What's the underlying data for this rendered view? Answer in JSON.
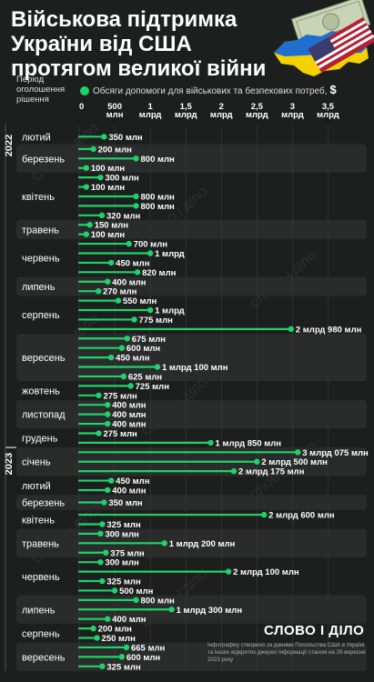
{
  "title_lines": [
    "Військова підтримка",
    "України від США",
    "протягом великої війни"
  ],
  "legend_label": "Обсяги допомоги для військових та безпекових потреб,",
  "currency": "$",
  "period_header": [
    "Період",
    "оголошення",
    "рішення"
  ],
  "footer": "Інфографіку створено за даними Посольства США в Україні та інших відкритих джерел інформації станом на 26 вересня 2023 року",
  "logo": "СЛОВО І ДІЛО",
  "colors": {
    "accent": "#1fd26a",
    "background": "#1d1f1e",
    "band": "#2a2c2b"
  },
  "chart_data": {
    "type": "bar",
    "unit": "USD",
    "xlim": [
      0,
      3750000000
    ],
    "x_ticks": [
      {
        "value": 0,
        "label": [
          "0"
        ]
      },
      {
        "value": 500000000,
        "label": [
          "500",
          "млн"
        ]
      },
      {
        "value": 1000000000,
        "label": [
          "1",
          "млрд"
        ]
      },
      {
        "value": 1500000000,
        "label": [
          "1,5",
          "млрд"
        ]
      },
      {
        "value": 2000000000,
        "label": [
          "2",
          "млрд"
        ]
      },
      {
        "value": 2500000000,
        "label": [
          "2,5",
          "млрд"
        ]
      },
      {
        "value": 3000000000,
        "label": [
          "3",
          "млрд"
        ]
      },
      {
        "value": 3500000000,
        "label": [
          "3,5",
          "млрд"
        ]
      }
    ],
    "years": [
      {
        "label": "2022",
        "from_month": 0
      },
      {
        "label": "2023",
        "from_month": 11
      }
    ],
    "months": [
      {
        "label": "лютий",
        "items": [
          {
            "value": 350000000,
            "label": "350 млн"
          }
        ]
      },
      {
        "label": "березень",
        "items": [
          {
            "value": 200000000,
            "label": "200 млн"
          },
          {
            "value": 800000000,
            "label": "800 млн"
          },
          {
            "value": 100000000,
            "label": "100 млн"
          }
        ]
      },
      {
        "label": "квітень",
        "items": [
          {
            "value": 300000000,
            "label": "300 млн"
          },
          {
            "value": 100000000,
            "label": "100 млн"
          },
          {
            "value": 800000000,
            "label": "800 млн"
          },
          {
            "value": 800000000,
            "label": "800 млн"
          },
          {
            "value": 320000000,
            "label": "320 млн"
          }
        ]
      },
      {
        "label": "травень",
        "items": [
          {
            "value": 150000000,
            "label": "150 млн"
          },
          {
            "value": 100000000,
            "label": "100 млн"
          }
        ]
      },
      {
        "label": "червень",
        "items": [
          {
            "value": 700000000,
            "label": "700 млн"
          },
          {
            "value": 1000000000,
            "label": "1 млрд"
          },
          {
            "value": 450000000,
            "label": "450 млн"
          },
          {
            "value": 820000000,
            "label": "820 млн"
          }
        ]
      },
      {
        "label": "липень",
        "items": [
          {
            "value": 400000000,
            "label": "400 млн"
          },
          {
            "value": 270000000,
            "label": "270 млн"
          }
        ]
      },
      {
        "label": "серпень",
        "items": [
          {
            "value": 550000000,
            "label": "550 млн"
          },
          {
            "value": 1000000000,
            "label": "1 млрд"
          },
          {
            "value": 775000000,
            "label": "775 млн"
          },
          {
            "value": 2980000000,
            "label": "2 млрд 980 млн"
          }
        ]
      },
      {
        "label": "вересень",
        "items": [
          {
            "value": 675000000,
            "label": "675 млн"
          },
          {
            "value": 600000000,
            "label": "600 млн"
          },
          {
            "value": 450000000,
            "label": "450 млн"
          },
          {
            "value": 1100000000,
            "label": "1 млрд 100 млн"
          },
          {
            "value": 625000000,
            "label": "625 млн"
          }
        ]
      },
      {
        "label": "жовтень",
        "items": [
          {
            "value": 725000000,
            "label": "725 млн"
          },
          {
            "value": 275000000,
            "label": "275 млн"
          }
        ]
      },
      {
        "label": "листопад",
        "items": [
          {
            "value": 400000000,
            "label": "400 млн"
          },
          {
            "value": 400000000,
            "label": "400 млн"
          },
          {
            "value": 400000000,
            "label": "400 млн"
          }
        ]
      },
      {
        "label": "грудень",
        "items": [
          {
            "value": 275000000,
            "label": "275 млн"
          },
          {
            "value": 1850000000,
            "label": "1 млрд 850 млн"
          }
        ]
      },
      {
        "label": "січень",
        "items": [
          {
            "value": 3075000000,
            "label": "3 млрд 075 млн"
          },
          {
            "value": 2500000000,
            "label": "2 млрд 500 млн"
          },
          {
            "value": 2175000000,
            "label": "2 млрд 175 млн"
          }
        ]
      },
      {
        "label": "лютий",
        "items": [
          {
            "value": 450000000,
            "label": "450 млн"
          },
          {
            "value": 400000000,
            "label": "400 млн"
          }
        ]
      },
      {
        "label": "березень",
        "items": [
          {
            "value": 350000000,
            "label": "350 млн"
          }
        ]
      },
      {
        "label": "квітень",
        "items": [
          {
            "value": 2600000000,
            "label": "2 млрд 600 млн"
          },
          {
            "value": 325000000,
            "label": "325 млн"
          }
        ]
      },
      {
        "label": "травень",
        "items": [
          {
            "value": 300000000,
            "label": "300 млн"
          },
          {
            "value": 1200000000,
            "label": "1 млрд 200 млн"
          },
          {
            "value": 375000000,
            "label": "375 млн"
          }
        ]
      },
      {
        "label": "червень",
        "items": [
          {
            "value": 300000000,
            "label": "300 млн"
          },
          {
            "value": 2100000000,
            "label": "2 млрд 100 млн"
          },
          {
            "value": 325000000,
            "label": "325 млн"
          },
          {
            "value": 500000000,
            "label": "500 млн"
          }
        ]
      },
      {
        "label": "липень",
        "items": [
          {
            "value": 800000000,
            "label": "800 млн"
          },
          {
            "value": 1300000000,
            "label": "1 млрд 300 млн"
          },
          {
            "value": 400000000,
            "label": "400 млн"
          }
        ]
      },
      {
        "label": "серпень",
        "items": [
          {
            "value": 200000000,
            "label": "200 млн"
          },
          {
            "value": 250000000,
            "label": "250 млн"
          }
        ]
      },
      {
        "label": "вересень",
        "items": [
          {
            "value": 665000000,
            "label": "665 млн"
          },
          {
            "value": 600000000,
            "label": "600 млн"
          },
          {
            "value": 325000000,
            "label": "325 млн"
          }
        ]
      }
    ]
  }
}
